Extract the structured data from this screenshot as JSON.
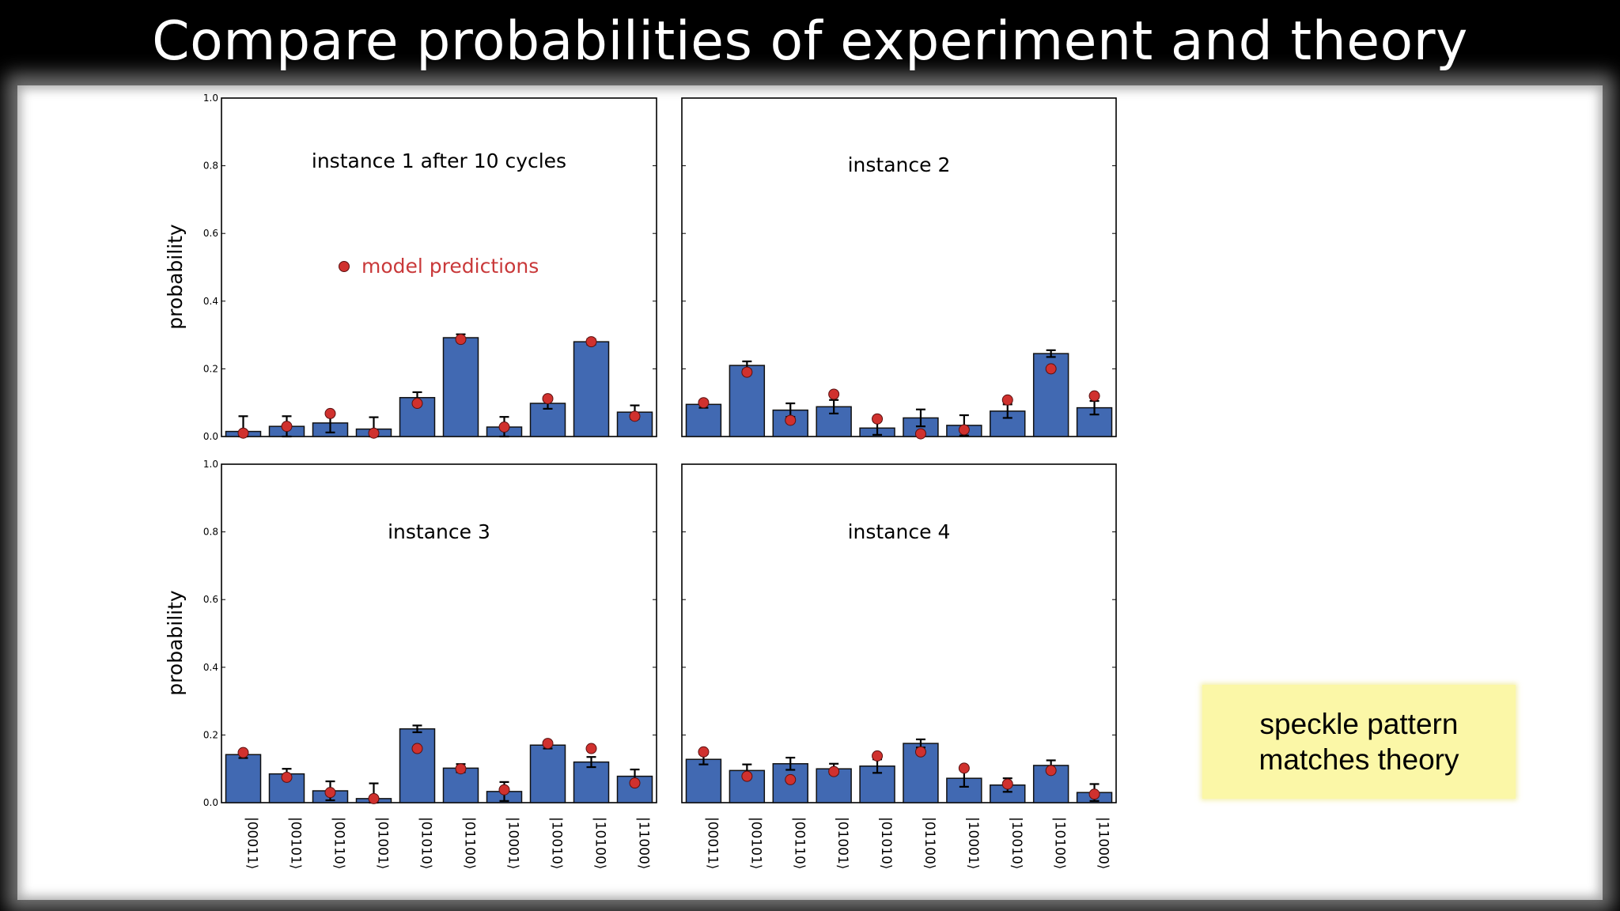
{
  "slide": {
    "title": "Compare probabilities of experiment and theory",
    "callout_line1": "speckle pattern",
    "callout_line2": "matches theory"
  },
  "colors": {
    "bar": "#4169b2",
    "bar_edge": "#111111",
    "marker": "#d0312e",
    "marker_edge": "#5a1010",
    "legend_text": "#c9393a",
    "callout_bg": "#fbf7a7"
  },
  "chart_data": [
    {
      "type": "bar",
      "title": "instance 1 after 10 cycles",
      "ylabel": "probability",
      "ylim": [
        0,
        1.0
      ],
      "yticks": [
        "0.0",
        "0.2",
        "0.4",
        "0.6",
        "0.8",
        "1.0"
      ],
      "categories": [
        "|00011⟩",
        "|00101⟩",
        "|00110⟩",
        "|01001⟩",
        "|01010⟩",
        "|01100⟩",
        "|10001⟩",
        "|10010⟩",
        "|10100⟩",
        "|11000⟩"
      ],
      "series": [
        {
          "values": [
            0.015,
            0.03,
            0.04,
            0.022,
            0.115,
            0.292,
            0.028,
            0.098,
            0.28,
            0.072
          ],
          "errors": [
            0.045,
            0.03,
            0.028,
            0.035,
            0.016,
            0.01,
            0.03,
            0.016,
            0.008,
            0.02
          ]
        },
        {
          "name": "model predictions",
          "values": [
            0.01,
            0.03,
            0.068,
            0.01,
            0.098,
            0.287,
            0.028,
            0.112,
            0.28,
            0.06
          ]
        }
      ],
      "legend": {
        "label": "model predictions",
        "position": "upper-left"
      }
    },
    {
      "type": "bar",
      "title": "instance 2",
      "ylim": [
        0,
        1.0
      ],
      "categories": [
        "|00011⟩",
        "|00101⟩",
        "|00110⟩",
        "|01001⟩",
        "|01010⟩",
        "|01100⟩",
        "|10001⟩",
        "|10010⟩",
        "|10100⟩",
        "|11000⟩"
      ],
      "series": [
        {
          "values": [
            0.095,
            0.21,
            0.078,
            0.088,
            0.025,
            0.055,
            0.033,
            0.075,
            0.245,
            0.085
          ],
          "errors": [
            0.01,
            0.012,
            0.02,
            0.02,
            0.02,
            0.025,
            0.03,
            0.02,
            0.01,
            0.02
          ]
        },
        {
          "name": "model predictions",
          "values": [
            0.1,
            0.19,
            0.048,
            0.125,
            0.052,
            0.008,
            0.02,
            0.108,
            0.2,
            0.12
          ]
        }
      ]
    },
    {
      "type": "bar",
      "title": "instance 3",
      "ylabel": "probability",
      "ylim": [
        0,
        1.0
      ],
      "yticks": [
        "0.0",
        "0.2",
        "0.4",
        "0.6",
        "0.8",
        "1.0"
      ],
      "categories": [
        "|00011⟩",
        "|00101⟩",
        "|00110⟩",
        "|01001⟩",
        "|01010⟩",
        "|01100⟩",
        "|10001⟩",
        "|10010⟩",
        "|10100⟩",
        "|11000⟩"
      ],
      "series": [
        {
          "values": [
            0.142,
            0.085,
            0.035,
            0.012,
            0.218,
            0.102,
            0.033,
            0.17,
            0.12,
            0.078
          ],
          "errors": [
            0.01,
            0.015,
            0.028,
            0.045,
            0.01,
            0.012,
            0.028,
            0.01,
            0.015,
            0.02
          ]
        },
        {
          "name": "model predictions",
          "values": [
            0.148,
            0.075,
            0.03,
            0.012,
            0.16,
            0.1,
            0.038,
            0.175,
            0.16,
            0.058
          ]
        }
      ]
    },
    {
      "type": "bar",
      "title": "instance 4",
      "ylim": [
        0,
        1.0
      ],
      "categories": [
        "|00011⟩",
        "|00101⟩",
        "|00110⟩",
        "|01001⟩",
        "|01010⟩",
        "|01100⟩",
        "|10001⟩",
        "|10010⟩",
        "|10100⟩",
        "|11000⟩"
      ],
      "series": [
        {
          "values": [
            0.128,
            0.095,
            0.115,
            0.1,
            0.108,
            0.175,
            0.072,
            0.052,
            0.11,
            0.03
          ],
          "errors": [
            0.015,
            0.018,
            0.018,
            0.015,
            0.02,
            0.012,
            0.025,
            0.02,
            0.015,
            0.025
          ]
        },
        {
          "name": "model predictions",
          "values": [
            0.15,
            0.078,
            0.068,
            0.092,
            0.138,
            0.15,
            0.102,
            0.055,
            0.095,
            0.025
          ]
        }
      ]
    }
  ]
}
